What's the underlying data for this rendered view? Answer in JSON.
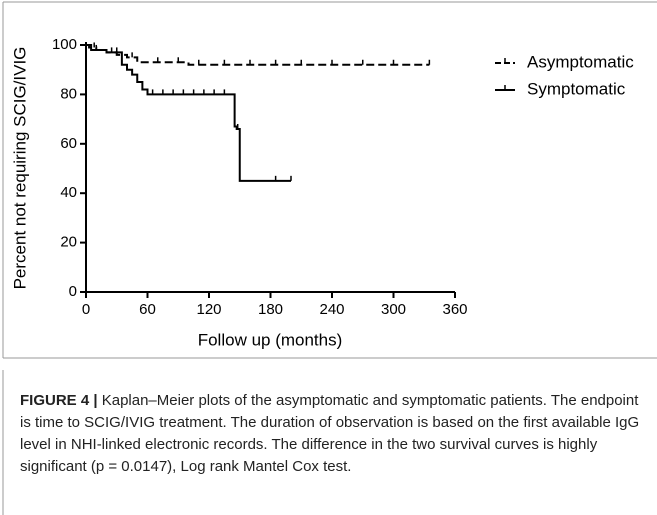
{
  "chart_data": {
    "type": "kaplan-meier",
    "ylabel": "Percent not requiring SCIG/IVIG",
    "xlabel": "Follow up (months)",
    "xlim": [
      0,
      360
    ],
    "xticks": [
      0,
      60,
      120,
      180,
      240,
      300,
      360
    ],
    "ylim": [
      0,
      100
    ],
    "yticks": [
      0,
      20,
      40,
      60,
      80,
      100
    ],
    "series": [
      {
        "name": "Asymptomatic",
        "color": "#000000",
        "dashed": true,
        "x": [
          0,
          3,
          10,
          20,
          30,
          40,
          50,
          60,
          100,
          335
        ],
        "values": [
          100,
          99,
          98,
          97,
          96,
          95,
          93,
          93,
          92,
          92
        ],
        "censored_x": [
          8,
          25,
          45,
          70,
          90,
          110,
          135,
          160,
          185,
          210,
          240,
          270,
          300,
          335
        ],
        "censored_values": [
          99,
          97,
          95,
          93,
          93,
          92,
          92,
          92,
          92,
          92,
          92,
          92,
          92,
          92
        ]
      },
      {
        "name": "Symptomatic",
        "color": "#000000",
        "dashed": false,
        "x": [
          0,
          5,
          20,
          35,
          40,
          45,
          50,
          55,
          60,
          145,
          147,
          150,
          200
        ],
        "values": [
          100,
          98,
          97,
          92,
          90,
          88,
          85,
          82,
          80,
          67,
          66,
          45,
          45
        ],
        "censored_x": [
          10,
          30,
          65,
          75,
          85,
          95,
          105,
          115,
          125,
          135,
          148,
          185,
          200
        ],
        "censored_values": [
          98,
          97,
          80,
          80,
          80,
          80,
          80,
          80,
          80,
          80,
          66,
          45,
          45
        ]
      }
    ]
  },
  "caption": {
    "label": "FIGURE 4 |",
    "text": "Kaplan–Meier plots of the asymptomatic and symptomatic patients. The endpoint is time to SCIG/IVIG treatment. The duration of observation is based on the first available IgG level in NHI-linked electronic records. The difference in the two survival curves is highly significant (p = 0.0147), Log rank Mantel Cox test."
  }
}
